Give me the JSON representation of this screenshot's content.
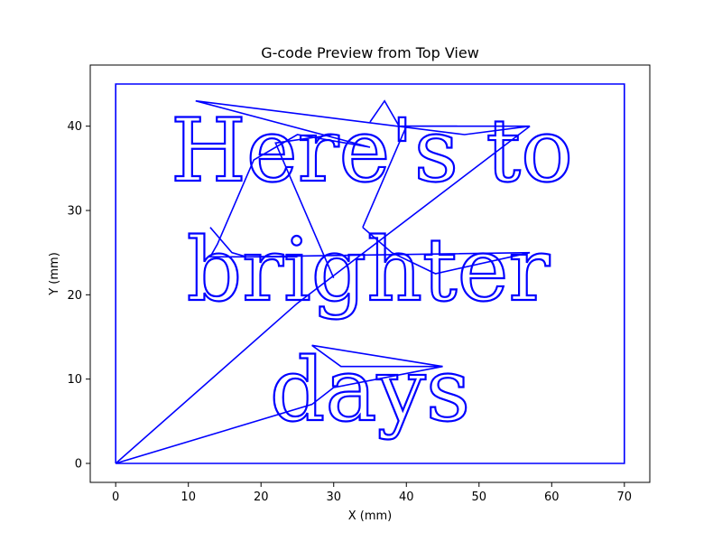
{
  "chart_data": {
    "type": "line",
    "title": "G-code Preview from Top View",
    "xlabel": "X (mm)",
    "ylabel": "Y (mm)",
    "xlim": [
      -3.5,
      73.5
    ],
    "ylim": [
      -2.25,
      47.25
    ],
    "xticks": [
      0,
      10,
      20,
      30,
      40,
      50,
      60,
      70
    ],
    "yticks": [
      0,
      10,
      20,
      30,
      40
    ],
    "grid": false,
    "line_color": "#0000ff",
    "text_lines": [
      "Here's to",
      "brighter",
      "days"
    ],
    "border_path": {
      "x": [
        0,
        0,
        70,
        70,
        0
      ],
      "y": [
        0,
        45,
        45,
        0,
        0
      ]
    },
    "travel_paths": [
      {
        "x": [
          0,
          27,
          30,
          45,
          27
        ],
        "y": [
          0,
          7,
          9,
          11.5,
          14
        ]
      },
      {
        "x": [
          27,
          31,
          45
        ],
        "y": [
          14,
          11.5,
          11.5
        ]
      },
      {
        "x": [
          0,
          25,
          57
        ],
        "y": [
          0,
          19,
          40
        ]
      },
      {
        "x": [
          13,
          16,
          18,
          57,
          44,
          38,
          34
        ],
        "y": [
          28,
          25,
          24.5,
          25,
          22.5,
          25,
          28
        ]
      },
      {
        "x": [
          34,
          40,
          57,
          48,
          11,
          35,
          25,
          19,
          14,
          13,
          25
        ],
        "y": [
          28,
          40,
          40,
          39,
          43,
          37.5,
          39,
          36,
          26,
          24.5,
          24.5
        ]
      },
      {
        "x": [
          35,
          37,
          39,
          47
        ],
        "y": [
          40.5,
          43,
          40,
          40
        ]
      },
      {
        "x": [
          30,
          22,
          30
        ],
        "y": [
          39,
          38,
          22
        ]
      }
    ]
  }
}
